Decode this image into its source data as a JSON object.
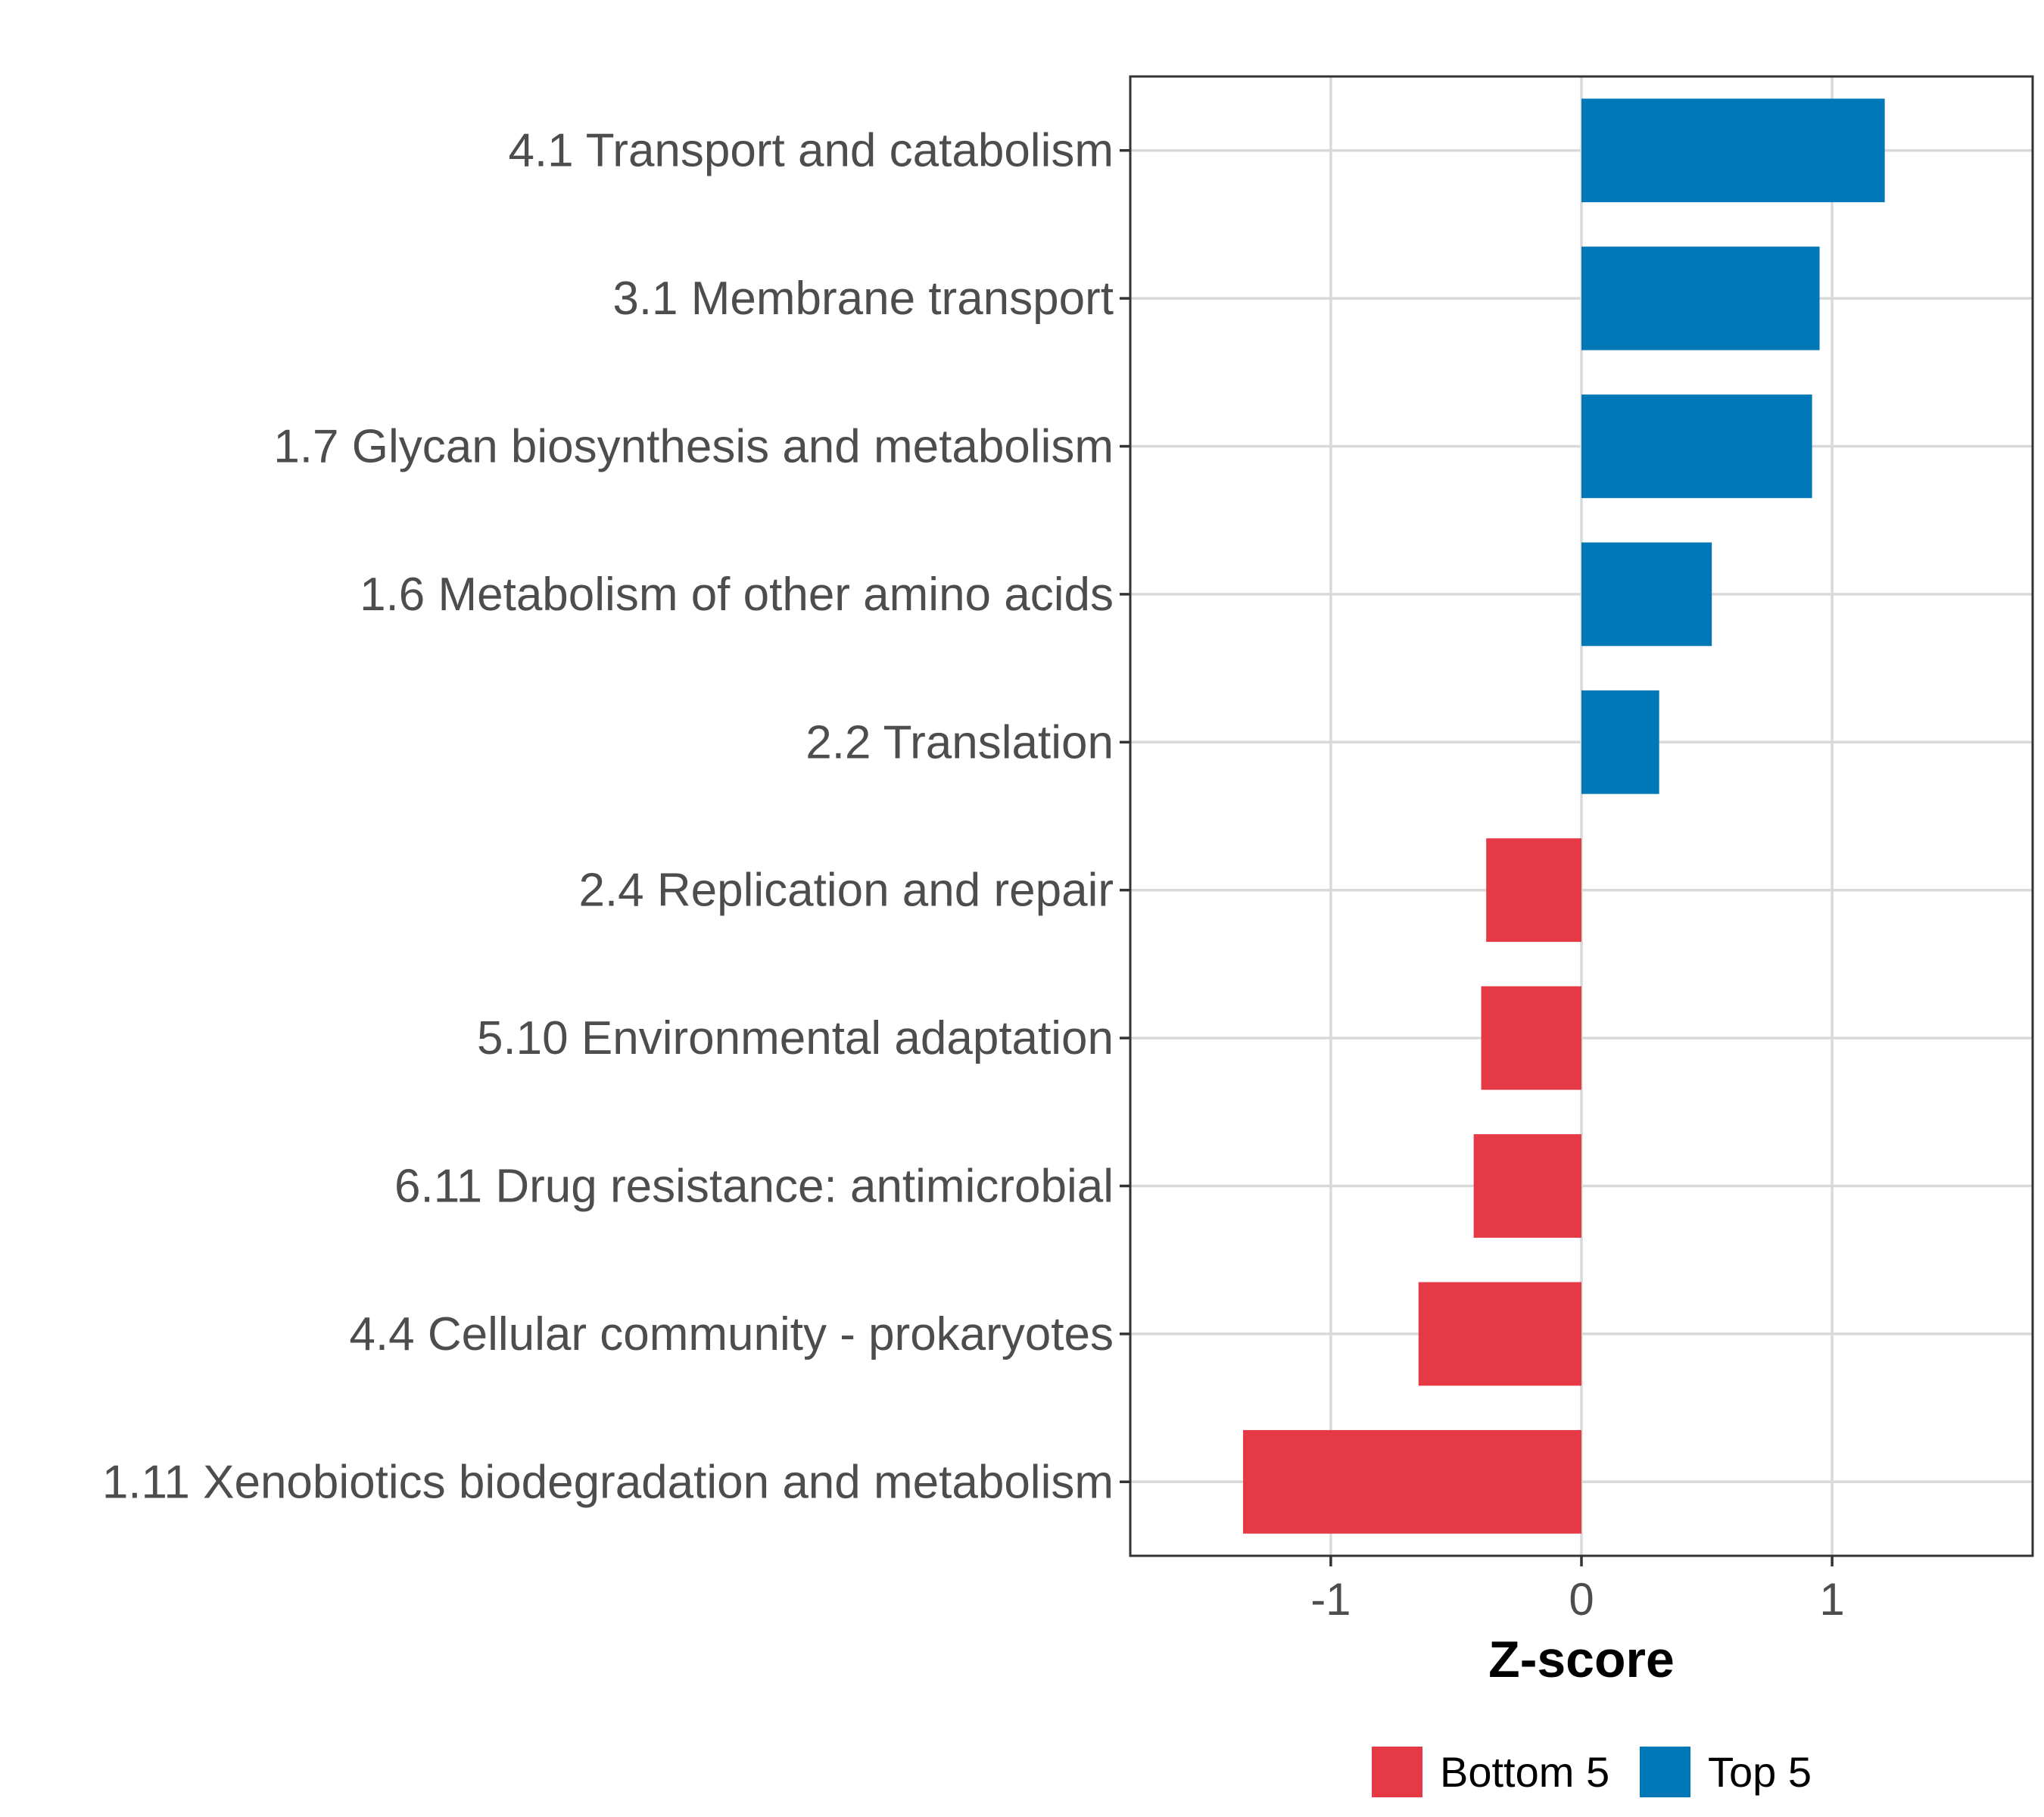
{
  "chart_data": {
    "type": "bar",
    "orientation": "horizontal",
    "categories": [
      "4.1 Transport and catabolism",
      "3.1 Membrane transport",
      "1.7 Glycan biosynthesis and metabolism",
      "1.6 Metabolism of other amino acids",
      "2.2 Translation",
      "2.4 Replication and repair",
      "5.10 Environmental adaptation",
      "6.11 Drug resistance: antimicrobial",
      "4.4 Cellular community - prokaryotes",
      "1.11 Xenobiotics biodegradation and metabolism"
    ],
    "values": [
      1.21,
      0.95,
      0.92,
      0.52,
      0.31,
      -0.38,
      -0.4,
      -0.43,
      -0.65,
      -1.35
    ],
    "groups": [
      "Top 5",
      "Top 5",
      "Top 5",
      "Top 5",
      "Top 5",
      "Bottom 5",
      "Bottom 5",
      "Bottom 5",
      "Bottom 5",
      "Bottom 5"
    ],
    "xlabel": "Z-score",
    "ylabel": "",
    "title": "",
    "xlim": [
      -1.8,
      1.8
    ],
    "xticks": [
      -1,
      0,
      1
    ],
    "xtick_labels": [
      "-1",
      "0",
      "1"
    ],
    "grid": true,
    "legend": {
      "position": "bottom",
      "entries": [
        {
          "label": "Bottom 5",
          "color": "#E63946"
        },
        {
          "label": "Top 5",
          "color": "#0077B6"
        }
      ]
    }
  }
}
